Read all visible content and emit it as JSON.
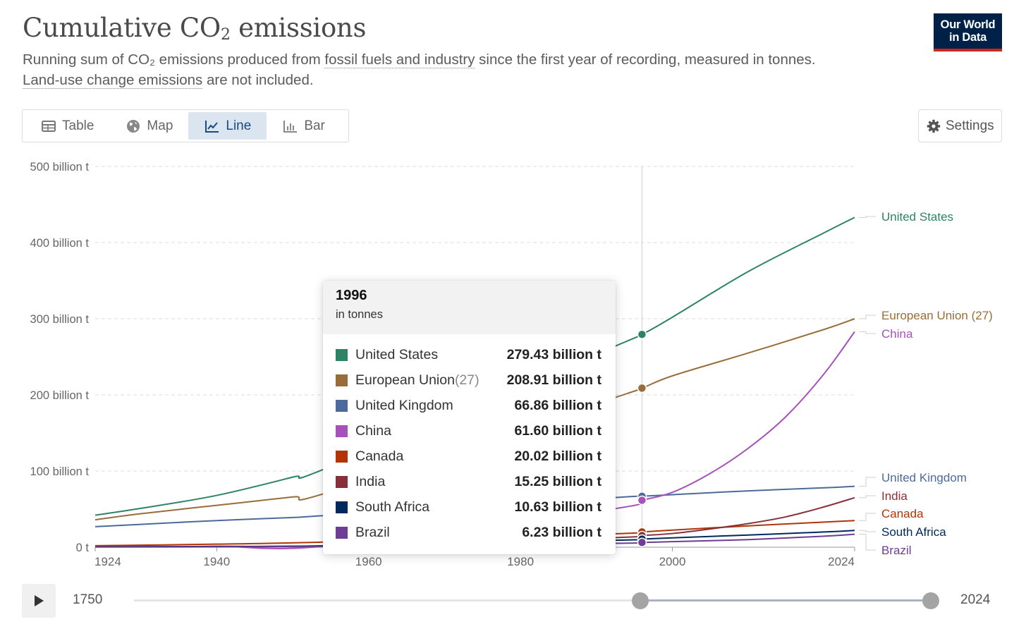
{
  "header": {
    "title_pre": "Cumulative CO",
    "title_sub": "2",
    "title_post": " emissions",
    "subtitle_1": "Running sum of CO₂ emissions produced from ",
    "subtitle_link_1": "fossil fuels and industry",
    "subtitle_2": " since the first year of recording, measured in tonnes. ",
    "subtitle_link_2": "Land-use change emissions",
    "subtitle_3": " are not included."
  },
  "logo": {
    "line1": "Our World",
    "line2": "in Data"
  },
  "tabs": {
    "table": "Table",
    "map": "Map",
    "line": "Line",
    "bar": "Bar",
    "active": "Line"
  },
  "settings_label": "Settings",
  "tooltip": {
    "year": "1996",
    "unit": "in tonnes",
    "rows": [
      {
        "name": "United States",
        "suffix": "",
        "value": "279.43 billion t",
        "color": "#2c8465"
      },
      {
        "name": "European Union",
        "suffix": " (27)",
        "value": "208.91 billion t",
        "color": "#996d39"
      },
      {
        "name": "United Kingdom",
        "suffix": "",
        "value": "66.86 billion t",
        "color": "#4c6a9c"
      },
      {
        "name": "China",
        "suffix": "",
        "value": "61.60 billion t",
        "color": "#a652ba"
      },
      {
        "name": "Canada",
        "suffix": "",
        "value": "20.02 billion t",
        "color": "#b13507"
      },
      {
        "name": "India",
        "suffix": "",
        "value": "15.25 billion t",
        "color": "#883039"
      },
      {
        "name": "South Africa",
        "suffix": "",
        "value": "10.63 billion t",
        "color": "#00295b"
      },
      {
        "name": "Brazil",
        "suffix": "",
        "value": "6.23 billion t",
        "color": "#6d3e91"
      }
    ]
  },
  "timeline": {
    "start": "1750",
    "end": "2024"
  },
  "chart_data": {
    "type": "line",
    "title": "Cumulative CO₂ emissions",
    "unit": "tonnes",
    "x_ticks": [
      1924,
      1940,
      1960,
      1980,
      2000,
      2024
    ],
    "xlim": [
      1924,
      2024
    ],
    "ylim": [
      0,
      500
    ],
    "y_ticks": [
      {
        "value": 0,
        "label": "0 t"
      },
      {
        "value": 100,
        "label": "100 billion t"
      },
      {
        "value": 200,
        "label": "200 billion t"
      },
      {
        "value": 300,
        "label": "300 billion t"
      },
      {
        "value": 400,
        "label": "400 billion t"
      },
      {
        "value": 500,
        "label": "500 billion t"
      }
    ],
    "hover_year": 1996,
    "series": [
      {
        "name": "United States",
        "color": "#2c8465",
        "label": "United States",
        "points": [
          [
            1924,
            42
          ],
          [
            1930,
            51
          ],
          [
            1940,
            68
          ],
          [
            1950,
            92
          ],
          [
            1955,
            106
          ],
          [
            1992,
            262
          ],
          [
            1996,
            279.43
          ],
          [
            2000,
            302
          ],
          [
            2010,
            362
          ],
          [
            2020,
            413
          ],
          [
            2024,
            433
          ]
        ]
      },
      {
        "name": "European Union (27)",
        "color": "#996d39",
        "label": "European Union (27)",
        "points": [
          [
            1924,
            36
          ],
          [
            1930,
            44
          ],
          [
            1940,
            55
          ],
          [
            1950,
            66
          ],
          [
            1955,
            73
          ],
          [
            1992,
            195
          ],
          [
            1996,
            208.91
          ],
          [
            2000,
            225
          ],
          [
            2010,
            255
          ],
          [
            2020,
            286
          ],
          [
            2024,
            300
          ]
        ]
      },
      {
        "name": "United Kingdom",
        "color": "#4c6a9c",
        "label": "United Kingdom",
        "points": [
          [
            1924,
            27
          ],
          [
            1930,
            30
          ],
          [
            1940,
            35
          ],
          [
            1950,
            39
          ],
          [
            1955,
            42
          ],
          [
            1992,
            65
          ],
          [
            1996,
            66.86
          ],
          [
            2000,
            69
          ],
          [
            2010,
            74
          ],
          [
            2020,
            78
          ],
          [
            2024,
            80
          ]
        ]
      },
      {
        "name": "China",
        "color": "#a652ba",
        "label": "China",
        "points": [
          [
            1924,
            0.5
          ],
          [
            1940,
            1
          ],
          [
            1955,
            2
          ],
          [
            1992,
            50
          ],
          [
            1996,
            61.6
          ],
          [
            2000,
            72
          ],
          [
            2005,
            97
          ],
          [
            2010,
            130
          ],
          [
            2015,
            172
          ],
          [
            2020,
            228
          ],
          [
            2024,
            283
          ]
        ]
      },
      {
        "name": "Canada",
        "color": "#b13507",
        "label": "Canada",
        "points": [
          [
            1924,
            2
          ],
          [
            1940,
            4
          ],
          [
            1955,
            7
          ],
          [
            1992,
            17.5
          ],
          [
            1996,
            20.02
          ],
          [
            2000,
            22.5
          ],
          [
            2010,
            28
          ],
          [
            2020,
            33
          ],
          [
            2024,
            35
          ]
        ]
      },
      {
        "name": "India",
        "color": "#883039",
        "label": "India",
        "points": [
          [
            1924,
            0.5
          ],
          [
            1940,
            1
          ],
          [
            1955,
            2
          ],
          [
            1992,
            12.5
          ],
          [
            1996,
            15.25
          ],
          [
            2000,
            18
          ],
          [
            2005,
            24
          ],
          [
            2010,
            31
          ],
          [
            2015,
            40
          ],
          [
            2020,
            53
          ],
          [
            2024,
            65
          ]
        ]
      },
      {
        "name": "South Africa",
        "color": "#00295b",
        "label": "South Africa",
        "points": [
          [
            1924,
            0.5
          ],
          [
            1940,
            1
          ],
          [
            1955,
            2
          ],
          [
            1992,
            9
          ],
          [
            1996,
            10.63
          ],
          [
            2000,
            12.3
          ],
          [
            2010,
            16
          ],
          [
            2020,
            20
          ],
          [
            2024,
            22
          ]
        ]
      },
      {
        "name": "Brazil",
        "color": "#6d3e91",
        "label": "Brazil",
        "points": [
          [
            1924,
            0.2
          ],
          [
            1940,
            0.5
          ],
          [
            1955,
            1
          ],
          [
            1992,
            5
          ],
          [
            1996,
            6.23
          ],
          [
            2000,
            7.3
          ],
          [
            2010,
            10
          ],
          [
            2020,
            14.5
          ],
          [
            2024,
            17
          ]
        ]
      }
    ]
  }
}
